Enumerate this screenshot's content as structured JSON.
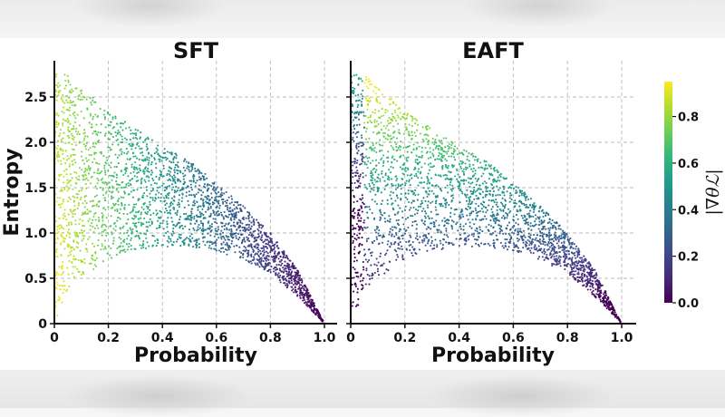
{
  "chart_data": [
    {
      "type": "scatter",
      "title": "SFT",
      "xlabel": "Probability",
      "ylabel": "Entropy",
      "xlim": [
        0,
        1.0
      ],
      "ylim": [
        0,
        2.9
      ],
      "xticks": [
        "0",
        "0.2",
        "0.4",
        "0.6",
        "0.8",
        "1.0"
      ],
      "yticks": [
        "0",
        "0.5",
        "1.0",
        "1.5",
        "2.0",
        "2.5"
      ],
      "grid": true,
      "color_by": "gradient_norm",
      "gradient_trend": "high near probability 0, decreasing toward 0 as probability approaches 1.0",
      "envelope": {
        "points_x": [
          0,
          0.05,
          0.1,
          0.2,
          0.3,
          0.4,
          0.5,
          0.6,
          0.7,
          0.8,
          0.9,
          1.0
        ],
        "max_entropy": [
          2.75,
          2.75,
          2.6,
          2.35,
          2.15,
          1.95,
          1.8,
          1.55,
          1.3,
          1.0,
          0.6,
          0.0
        ],
        "min_entropy": [
          0.0,
          0.35,
          0.5,
          0.7,
          0.8,
          0.85,
          0.85,
          0.8,
          0.7,
          0.55,
          0.3,
          0.0
        ]
      }
    },
    {
      "type": "scatter",
      "title": "EAFT",
      "xlabel": "Probability",
      "ylabel": "",
      "xlim": [
        0,
        1.0
      ],
      "ylim": [
        0,
        2.9
      ],
      "xticks": [
        "0",
        "0.2",
        "0.4",
        "0.6",
        "0.8",
        "1.0"
      ],
      "yticks": [],
      "grid": true,
      "color_by": "gradient_norm",
      "gradient_trend": "high at high entropy, low at low entropy and near probability 0",
      "envelope": {
        "points_x": [
          0,
          0.05,
          0.1,
          0.2,
          0.3,
          0.4,
          0.5,
          0.6,
          0.7,
          0.8,
          0.9,
          1.0
        ],
        "max_entropy": [
          2.75,
          2.75,
          2.6,
          2.35,
          2.15,
          1.95,
          1.8,
          1.55,
          1.3,
          1.0,
          0.6,
          0.0
        ],
        "min_entropy": [
          0.0,
          0.35,
          0.5,
          0.7,
          0.8,
          0.85,
          0.85,
          0.8,
          0.7,
          0.55,
          0.3,
          0.0
        ]
      }
    }
  ],
  "colorbar": {
    "label": "|∇θℒ|",
    "range": [
      0.0,
      0.95
    ],
    "ticks": [
      "0.0",
      "0.2",
      "0.4",
      "0.6",
      "0.8"
    ],
    "colormap": "viridis"
  },
  "colors": {
    "viridis": [
      "#440154",
      "#482878",
      "#3e4989",
      "#31688e",
      "#26828e",
      "#1f9e89",
      "#35b779",
      "#6ece58",
      "#b5de2b",
      "#fde725"
    ],
    "axis": "#111111",
    "grid": "#bbbbbb"
  }
}
